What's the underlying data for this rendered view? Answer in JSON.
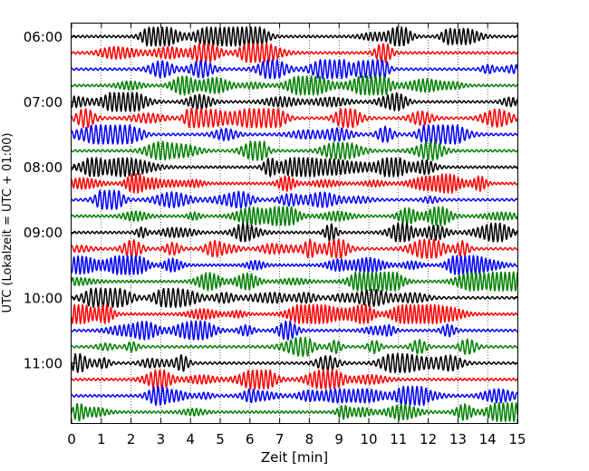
{
  "chart_data": {
    "type": "line",
    "title": "",
    "xlabel": "Zeit  [min]",
    "ylabel": "UTC (Lokalzeit = UTC + 01:00)",
    "xlim": [
      0,
      15
    ],
    "x_ticks": [
      "0",
      "1",
      "2",
      "3",
      "4",
      "5",
      "6",
      "7",
      "8",
      "9",
      "10",
      "11",
      "12",
      "13",
      "14",
      "15"
    ],
    "y_ticks": [
      "06:00",
      "07:00",
      "08:00",
      "09:00",
      "10:00",
      "11:00"
    ],
    "grid": "vertical, dotted",
    "trace_colors": [
      "#000000",
      "#ff0000",
      "#0000ff",
      "#008000"
    ],
    "rows_per_hour": 4,
    "minutes_per_row": 15,
    "series": [
      {
        "start": "06:00",
        "color": "#000000"
      },
      {
        "start": "06:15",
        "color": "#ff0000"
      },
      {
        "start": "06:30",
        "color": "#0000ff"
      },
      {
        "start": "06:45",
        "color": "#008000"
      },
      {
        "start": "07:00",
        "color": "#000000"
      },
      {
        "start": "07:15",
        "color": "#ff0000"
      },
      {
        "start": "07:30",
        "color": "#0000ff"
      },
      {
        "start": "07:45",
        "color": "#008000"
      },
      {
        "start": "08:00",
        "color": "#000000"
      },
      {
        "start": "08:15",
        "color": "#ff0000"
      },
      {
        "start": "08:30",
        "color": "#0000ff"
      },
      {
        "start": "08:45",
        "color": "#008000"
      },
      {
        "start": "09:00",
        "color": "#000000"
      },
      {
        "start": "09:15",
        "color": "#ff0000"
      },
      {
        "start": "09:30",
        "color": "#0000ff"
      },
      {
        "start": "09:45",
        "color": "#008000"
      },
      {
        "start": "10:00",
        "color": "#000000"
      },
      {
        "start": "10:15",
        "color": "#ff0000"
      },
      {
        "start": "10:30",
        "color": "#0000ff"
      },
      {
        "start": "10:45",
        "color": "#008000"
      },
      {
        "start": "11:00",
        "color": "#000000"
      },
      {
        "start": "11:15",
        "color": "#ff0000"
      },
      {
        "start": "11:30",
        "color": "#0000ff"
      },
      {
        "start": "11:45",
        "color": "#008000"
      }
    ]
  }
}
